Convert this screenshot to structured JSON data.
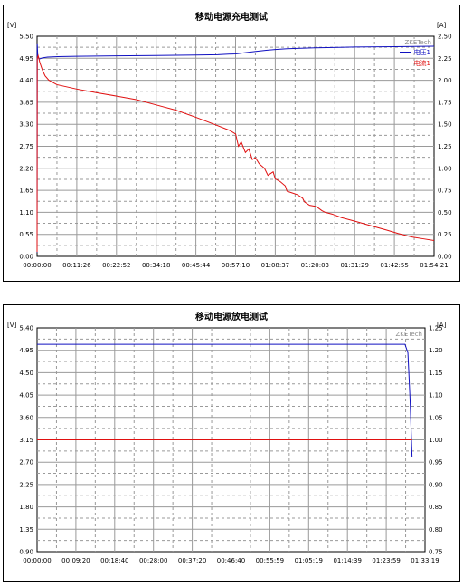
{
  "charts": [
    {
      "title": "移动电源充电测试",
      "left_unit": "[V]",
      "right_unit": "[A]",
      "watermark": "ZKETech",
      "y_left_ticks": [
        "5.50",
        "4.95",
        "4.40",
        "3.85",
        "3.30",
        "2.75",
        "2.20",
        "1.65",
        "1.10",
        "0.55",
        "0.00"
      ],
      "y_right_ticks": [
        "2.50",
        "2.25",
        "2.00",
        "1.75",
        "1.50",
        "1.25",
        "1.00",
        "0.75",
        "0.50",
        "0.25",
        "0.00"
      ],
      "x_ticks": [
        "00:00:00",
        "00:11:26",
        "00:22:52",
        "00:34:18",
        "00:45:44",
        "00:57:10",
        "01:08:37",
        "01:20:03",
        "01:31:29",
        "01:42:55",
        "01:54:21"
      ],
      "legend": [
        {
          "name": "电压1",
          "color": "#1010c0"
        },
        {
          "name": "电流1",
          "color": "#e01010"
        }
      ]
    },
    {
      "title": "移动电源放电测试",
      "left_unit": "[V]",
      "right_unit": "[A]",
      "watermark": "ZKETech",
      "y_left_ticks": [
        "5.40",
        "4.95",
        "4.50",
        "4.05",
        "3.60",
        "3.15",
        "2.70",
        "2.25",
        "1.80",
        "1.35",
        "0.90"
      ],
      "y_right_ticks": [
        "1.25",
        "1.20",
        "1.15",
        "1.10",
        "1.05",
        "1.00",
        "0.95",
        "0.90",
        "0.85",
        "0.80",
        "0.75"
      ],
      "x_ticks": [
        "00:00:00",
        "00:09:20",
        "00:18:40",
        "00:28:00",
        "00:37:20",
        "00:46:40",
        "00:55:59",
        "01:05:19",
        "01:14:39",
        "01:23:59",
        "01:33:19"
      ]
    }
  ],
  "chart_data": [
    {
      "type": "line",
      "title": "移动电源充电测试",
      "xlabel": "",
      "ylabel": "[V]",
      "y2label": "[A]",
      "x_unit": "minutes",
      "xlim": [
        0,
        114.35
      ],
      "ylim": [
        0,
        5.5
      ],
      "y2lim": [
        0,
        2.5
      ],
      "grid": true,
      "legend": "top-right",
      "series": [
        {
          "name": "电压1",
          "axis": "left",
          "color": "#1010c0",
          "x": [
            0,
            0.05,
            0.2,
            0.6,
            1.5,
            3,
            6,
            11.4,
            22.9,
            34.3,
            45.7,
            52,
            57.2,
            60,
            63,
            66,
            68.6,
            72,
            80,
            91.5,
            103,
            114.35
          ],
          "y": [
            0.1,
            5.3,
            5.0,
            4.93,
            4.96,
            4.98,
            4.99,
            5.0,
            5.01,
            5.02,
            5.03,
            5.04,
            5.06,
            5.09,
            5.12,
            5.15,
            5.17,
            5.19,
            5.21,
            5.23,
            5.24,
            5.25
          ]
        },
        {
          "name": "电流1",
          "axis": "right",
          "color": "#e01010",
          "x": [
            0,
            0.05,
            0.3,
            0.8,
            1.5,
            2.3,
            3.4,
            5.7,
            11.4,
            17,
            22.9,
            28.6,
            34.3,
            40,
            45.7,
            51,
            55.5,
            57.2,
            58,
            58.8,
            60,
            61,
            62,
            62.9,
            64,
            65.5,
            66.5,
            68,
            68.6,
            70,
            71.5,
            72,
            73.5,
            75,
            76.5,
            77,
            78.5,
            80,
            81,
            82,
            83,
            85,
            87.7,
            91.5,
            96,
            100.6,
            104,
            108,
            111.2,
            114.35
          ],
          "y": [
            0.05,
            2.25,
            2.28,
            2.2,
            2.12,
            2.05,
            2.0,
            1.95,
            1.9,
            1.86,
            1.82,
            1.78,
            1.72,
            1.66,
            1.58,
            1.5,
            1.43,
            1.39,
            1.25,
            1.3,
            1.18,
            1.22,
            1.1,
            1.12,
            1.05,
            1.0,
            0.92,
            0.96,
            0.88,
            0.85,
            0.8,
            0.74,
            0.72,
            0.7,
            0.66,
            0.62,
            0.58,
            0.57,
            0.55,
            0.52,
            0.5,
            0.48,
            0.44,
            0.4,
            0.35,
            0.3,
            0.26,
            0.22,
            0.2,
            0.18
          ]
        }
      ]
    },
    {
      "type": "line",
      "title": "移动电源放电测试",
      "xlabel": "",
      "ylabel": "[V]",
      "y2label": "[A]",
      "x_unit": "minutes",
      "xlim": [
        0,
        93.32
      ],
      "ylim": [
        0.9,
        5.4
      ],
      "y2lim": [
        0.75,
        1.25
      ],
      "grid": true,
      "legend": "none",
      "series": [
        {
          "axis": "left",
          "color": "#1010c0",
          "x": [
            0,
            5,
            20,
            40,
            60,
            80,
            88.5,
            89.2,
            89.7,
            90.2
          ],
          "y": [
            5.07,
            5.07,
            5.07,
            5.07,
            5.07,
            5.07,
            5.07,
            4.9,
            4.0,
            2.8
          ]
        },
        {
          "axis": "right",
          "color": "#e01010",
          "x": [
            0,
            88.5,
            89.5,
            90.2
          ],
          "y": [
            1.0,
            1.0,
            1.0,
            1.0
          ]
        }
      ]
    }
  ]
}
